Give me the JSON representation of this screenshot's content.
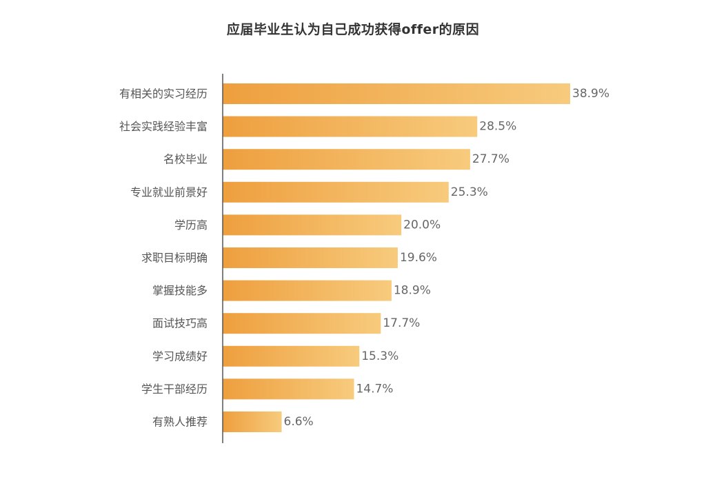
{
  "chart_data": {
    "type": "bar",
    "orientation": "horizontal",
    "title": "应届毕业生认为自己成功获得offer的原因",
    "categories": [
      "有相关的实习经历",
      "社会实践经验丰富",
      "名校毕业",
      "专业就业前景好",
      "学历高",
      "求职目标明确",
      "掌握技能多",
      "面试技巧高",
      "学习成绩好",
      "学生干部经历",
      "有熟人推荐"
    ],
    "values": [
      38.9,
      28.5,
      27.7,
      25.3,
      20.0,
      19.6,
      18.9,
      17.7,
      15.3,
      14.7,
      6.6
    ],
    "value_labels": [
      "38.9%",
      "28.5%",
      "27.7%",
      "25.3%",
      "20.0%",
      "19.6%",
      "18.9%",
      "17.7%",
      "15.3%",
      "14.7%",
      "6.6%"
    ],
    "xlim": [
      0,
      38.9
    ],
    "grid": false,
    "legend": "none",
    "colors": {
      "bar_gradient_start": "#EE9F3E",
      "bar_gradient_end": "#F7CB7D",
      "axis": "#555555"
    }
  }
}
